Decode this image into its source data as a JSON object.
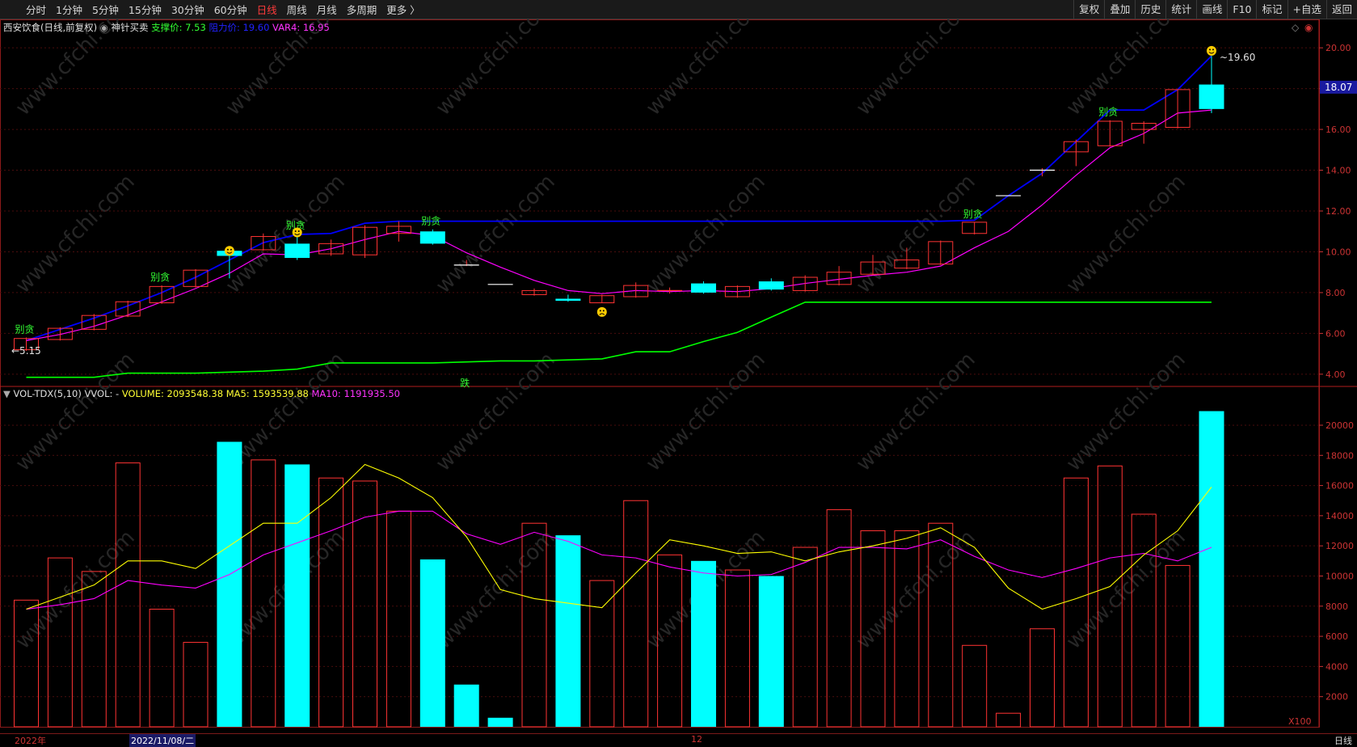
{
  "toolbar": {
    "periods": [
      "分时",
      "1分钟",
      "5分钟",
      "15分钟",
      "30分钟",
      "60分钟",
      "日线",
      "周线",
      "月线",
      "多周期",
      "更多 〉"
    ],
    "active_period": "日线",
    "actions": [
      "复权",
      "叠加",
      "历史",
      "统计",
      "画线",
      "F10",
      "标记",
      "+自选",
      "返回"
    ]
  },
  "price_panel": {
    "stock_title": "西安饮食(日线,前复权)",
    "indicator_name": "神针买卖",
    "support_label": "支撑价: 7.53",
    "resist_label": "阻力价: 19.60",
    "var4_label": "VAR4: 16.95",
    "current_price_tag": "18.07",
    "high_marker": "19.60",
    "low_marker": "←5.15",
    "signal_label": "别贪",
    "down_label": "跌",
    "y_ticks": [
      "20.00",
      "18.00",
      "16.00",
      "14.00",
      "12.00",
      "10.00",
      "8.00",
      "6.00",
      "4.00"
    ]
  },
  "volume_panel": {
    "name": "VOL-TDX(5,10)",
    "vvol": "VVOL: -",
    "volume_label": "VOLUME: 2093548.38",
    "ma5_label": "MA5: 1593539.88",
    "ma10_label": "MA10: 1191935.50",
    "unit": "X100",
    "y_ticks": [
      "20000",
      "18000",
      "16000",
      "14000",
      "12000",
      "10000",
      "8000",
      "6000",
      "4000",
      "2000"
    ]
  },
  "bottom_bar": {
    "year_label": "2022年",
    "cursor_date": "2022/11/08/二",
    "month_label": "12",
    "period_label": "日线"
  },
  "watermark": "www.cfchi.com",
  "colors": {
    "up": "#ff3333",
    "down": "#00ffff",
    "resist": "#0000ff",
    "support": "#00ff00",
    "var4": "#ff00ff",
    "ma5": "#ffff00",
    "ma10": "#ff00ff",
    "signal": "#33ff33",
    "axis": "#cc3333"
  },
  "chart_data": [
    {
      "type": "candlestick",
      "title": "西安饮食(日线,前复权)",
      "ylim": [
        3.4,
        20.6
      ],
      "candles": [
        {
          "o": 5.2,
          "h": 5.8,
          "l": 5.15,
          "c": 5.75
        },
        {
          "o": 5.7,
          "h": 6.3,
          "l": 5.65,
          "c": 6.25
        },
        {
          "o": 6.2,
          "h": 6.95,
          "l": 6.15,
          "c": 6.88
        },
        {
          "o": 6.85,
          "h": 7.6,
          "l": 6.8,
          "c": 7.55
        },
        {
          "o": 7.5,
          "h": 8.35,
          "l": 7.45,
          "c": 8.3
        },
        {
          "o": 8.3,
          "h": 9.15,
          "l": 8.25,
          "c": 9.1
        },
        {
          "o": 10.05,
          "h": 10.1,
          "l": 8.7,
          "c": 9.8
        },
        {
          "o": 10.1,
          "h": 10.9,
          "l": 10.05,
          "c": 10.75
        },
        {
          "o": 10.4,
          "h": 10.9,
          "l": 9.6,
          "c": 9.7
        },
        {
          "o": 9.9,
          "h": 10.6,
          "l": 9.8,
          "c": 10.4
        },
        {
          "o": 9.85,
          "h": 11.3,
          "l": 9.7,
          "c": 11.2
        },
        {
          "o": 10.9,
          "h": 11.5,
          "l": 10.5,
          "c": 11.25
        },
        {
          "o": 11.0,
          "h": 11.1,
          "l": 10.35,
          "c": 10.4
        },
        {
          "o": 9.35,
          "h": 9.6,
          "l": 9.3,
          "c": 9.35
        },
        {
          "o": 8.4,
          "h": 8.4,
          "l": 8.4,
          "c": 8.4
        },
        {
          "o": 7.9,
          "h": 8.2,
          "l": 7.85,
          "c": 8.1
        },
        {
          "o": 7.7,
          "h": 7.9,
          "l": 7.55,
          "c": 7.6
        },
        {
          "o": 7.5,
          "h": 7.9,
          "l": 7.5,
          "c": 7.85
        },
        {
          "o": 7.8,
          "h": 8.5,
          "l": 7.75,
          "c": 8.35
        },
        {
          "o": 8.05,
          "h": 8.25,
          "l": 7.95,
          "c": 8.1
        },
        {
          "o": 8.45,
          "h": 8.55,
          "l": 7.95,
          "c": 8.0
        },
        {
          "o": 7.8,
          "h": 8.35,
          "l": 7.75,
          "c": 8.3
        },
        {
          "o": 8.55,
          "h": 8.7,
          "l": 8.1,
          "c": 8.15
        },
        {
          "o": 8.1,
          "h": 8.85,
          "l": 8.05,
          "c": 8.75
        },
        {
          "o": 8.4,
          "h": 9.3,
          "l": 8.35,
          "c": 9.0
        },
        {
          "o": 8.9,
          "h": 9.85,
          "l": 8.85,
          "c": 9.5
        },
        {
          "o": 9.2,
          "h": 10.2,
          "l": 9.15,
          "c": 9.6
        },
        {
          "o": 9.4,
          "h": 10.55,
          "l": 9.35,
          "c": 10.5
        },
        {
          "o": 10.9,
          "h": 11.45,
          "l": 10.85,
          "c": 11.45
        },
        {
          "o": 12.75,
          "h": 12.75,
          "l": 12.75,
          "c": 12.75
        },
        {
          "o": 14.0,
          "h": 14.1,
          "l": 13.7,
          "c": 14.0
        },
        {
          "o": 14.9,
          "h": 15.5,
          "l": 14.2,
          "c": 15.4
        },
        {
          "o": 15.2,
          "h": 16.45,
          "l": 15.15,
          "c": 16.4
        },
        {
          "o": 16.0,
          "h": 16.4,
          "l": 15.3,
          "c": 16.3
        },
        {
          "o": 16.1,
          "h": 17.95,
          "l": 16.05,
          "c": 17.95
        },
        {
          "o": 18.2,
          "h": 19.6,
          "l": 16.8,
          "c": 17.0
        }
      ],
      "resist_line": [
        5.65,
        6.2,
        6.75,
        7.35,
        8.0,
        8.75,
        9.6,
        10.45,
        10.85,
        10.9,
        11.4,
        11.5,
        11.5,
        11.5,
        11.5,
        11.5,
        11.5,
        11.5,
        11.5,
        11.5,
        11.5,
        11.5,
        11.5,
        11.5,
        11.5,
        11.5,
        11.5,
        11.5,
        11.55,
        12.75,
        13.85,
        15.4,
        16.95,
        16.95,
        17.95,
        19.6
      ],
      "support_line": [
        3.85,
        3.85,
        3.85,
        4.05,
        4.05,
        4.05,
        4.1,
        4.15,
        4.25,
        4.55,
        4.55,
        4.55,
        4.55,
        4.6,
        4.65,
        4.65,
        4.7,
        4.75,
        5.1,
        5.1,
        5.6,
        6.05,
        6.8,
        7.53,
        7.53,
        7.53,
        7.53,
        7.53,
        7.53,
        7.53,
        7.53,
        7.53,
        7.53,
        7.53,
        7.53,
        7.53
      ],
      "var4_line": [
        5.65,
        5.95,
        6.35,
        6.9,
        7.55,
        8.2,
        8.95,
        9.9,
        9.85,
        10.15,
        10.6,
        11.0,
        10.8,
        9.95,
        9.25,
        8.6,
        8.1,
        7.95,
        8.1,
        8.05,
        8.1,
        8.05,
        8.2,
        8.45,
        8.65,
        8.85,
        9.0,
        9.3,
        10.2,
        11.0,
        12.3,
        13.75,
        15.1,
        15.8,
        16.8,
        16.95
      ],
      "signals": [
        0,
        4,
        8,
        12,
        28,
        32
      ]
    },
    {
      "type": "bar",
      "title": "VOL-TDX(5,10)",
      "unit": "X100",
      "ylim": [
        0,
        21500
      ],
      "volumes": [
        8400,
        11200,
        10300,
        17500,
        7800,
        5600,
        18900,
        17700,
        17400,
        16500,
        16300,
        14300,
        11100,
        2800,
        600,
        13500,
        12700,
        9700,
        15000,
        11400,
        11000,
        10400,
        10000,
        11900,
        14400,
        13000,
        13000,
        13500,
        5400,
        900,
        6500,
        16500,
        17300,
        14100,
        10700,
        20935
      ],
      "down": [
        false,
        false,
        false,
        false,
        false,
        false,
        true,
        false,
        true,
        false,
        false,
        false,
        true,
        true,
        true,
        false,
        true,
        false,
        false,
        false,
        true,
        false,
        true,
        false,
        false,
        false,
        false,
        false,
        false,
        false,
        false,
        false,
        false,
        false,
        false,
        true
      ],
      "ma5": [
        7800,
        8600,
        9400,
        11000,
        11000,
        10500,
        12000,
        13500,
        13500,
        15200,
        17400,
        16500,
        15200,
        12600,
        9100,
        8500,
        8200,
        7900,
        10200,
        12400,
        12000,
        11500,
        11600,
        11000,
        11600,
        12000,
        12500,
        13200,
        11900,
        9200,
        7800,
        8500,
        9300,
        11400,
        13000,
        15900
      ],
      "ma10": [
        7800,
        8100,
        8500,
        9700,
        9400,
        9200,
        10100,
        11400,
        12200,
        13000,
        13900,
        14300,
        14300,
        12800,
        12100,
        12900,
        12300,
        11400,
        11200,
        10600,
        10200,
        10000,
        10100,
        10900,
        11900,
        11900,
        11800,
        12400,
        11300,
        10400,
        9900,
        10500,
        11200,
        11500,
        11000,
        11900
      ]
    }
  ]
}
